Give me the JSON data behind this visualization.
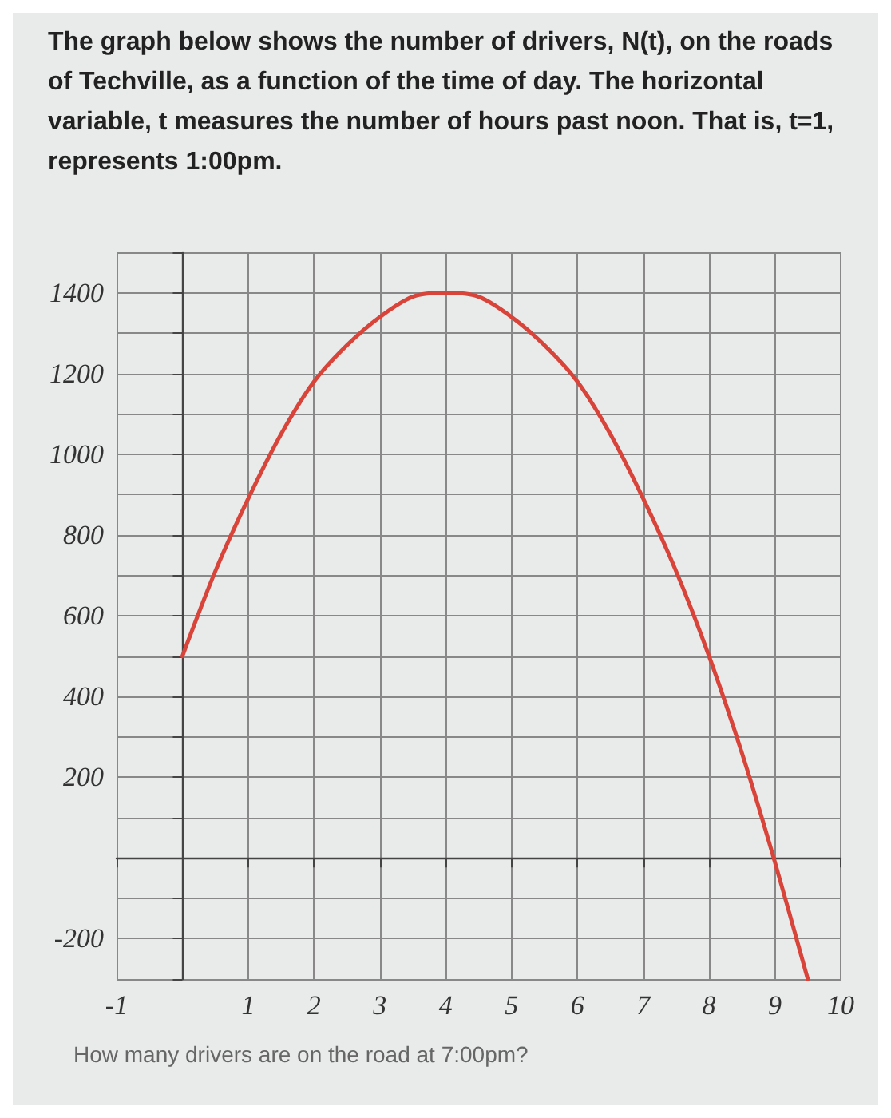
{
  "chart_data": {
    "type": "line",
    "title": "The graph below shows the number of drivers, N(t), on the roads of Techville, as a function of the time of day. The horizontal variable, t measures the number of hours past noon. That is, t=1, represents 1:00pm.",
    "annotations": [
      "How many drivers are on the road at 7:00pm?"
    ],
    "x": [
      0,
      0.5,
      1,
      1.5,
      2,
      2.5,
      3,
      3.5,
      4,
      4.5,
      5,
      5.5,
      6,
      6.5,
      7,
      7.5,
      8,
      8.5,
      9,
      9.5
    ],
    "series": [
      {
        "color": "#d9443a",
        "values": [
          500,
          710,
          890,
          1050,
          1180,
          1270,
          1340,
          1390,
          1400,
          1390,
          1340,
          1270,
          1180,
          1050,
          890,
          710,
          500,
          260,
          -10,
          -300
        ]
      }
    ],
    "xlim": [
      -1,
      10
    ],
    "ylim": [
      -300,
      1500
    ],
    "xticks": [
      -1,
      1,
      2,
      3,
      4,
      5,
      6,
      7,
      8,
      9,
      10
    ],
    "yticks": [
      {
        "value": -300,
        "label": null
      },
      -200,
      {
        "value": -100,
        "label": null
      },
      {
        "value": 0,
        "label": null
      },
      {
        "value": 100,
        "label": null
      },
      200,
      {
        "value": 300,
        "label": null
      },
      400,
      {
        "value": 500,
        "label": null
      },
      600,
      {
        "value": 700,
        "label": null
      },
      800,
      {
        "value": 900,
        "label": null
      },
      1000,
      {
        "value": 1100,
        "label": null
      },
      1200,
      {
        "value": 1300,
        "label": null
      },
      1400,
      {
        "value": 1500,
        "label": null
      }
    ],
    "grid": true,
    "marker": "none",
    "line_style": "solid"
  }
}
